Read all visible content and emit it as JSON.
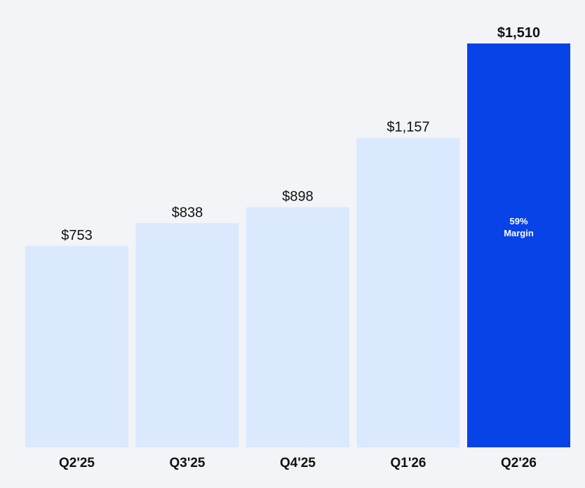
{
  "chart_data": {
    "type": "bar",
    "categories": [
      "Q2'25",
      "Q3'25",
      "Q4'25",
      "Q1'26",
      "Q2'26"
    ],
    "values": [
      753,
      838,
      898,
      1157,
      1510
    ],
    "value_labels": [
      "$753",
      "$838",
      "$898",
      "$1,157",
      "$1,510"
    ],
    "highlight_index": 4,
    "highlight_annotation": [
      "59%",
      "Margin"
    ],
    "title": "",
    "xlabel": "",
    "ylabel": "",
    "ylim": [
      0,
      1510
    ],
    "grid": false,
    "legend": "none"
  },
  "colors": {
    "background": "#f2f4f8",
    "bar": "#dbe9fe",
    "highlight_bar": "#0743e6",
    "text": "#111111",
    "highlight_text": "#ffffff"
  }
}
